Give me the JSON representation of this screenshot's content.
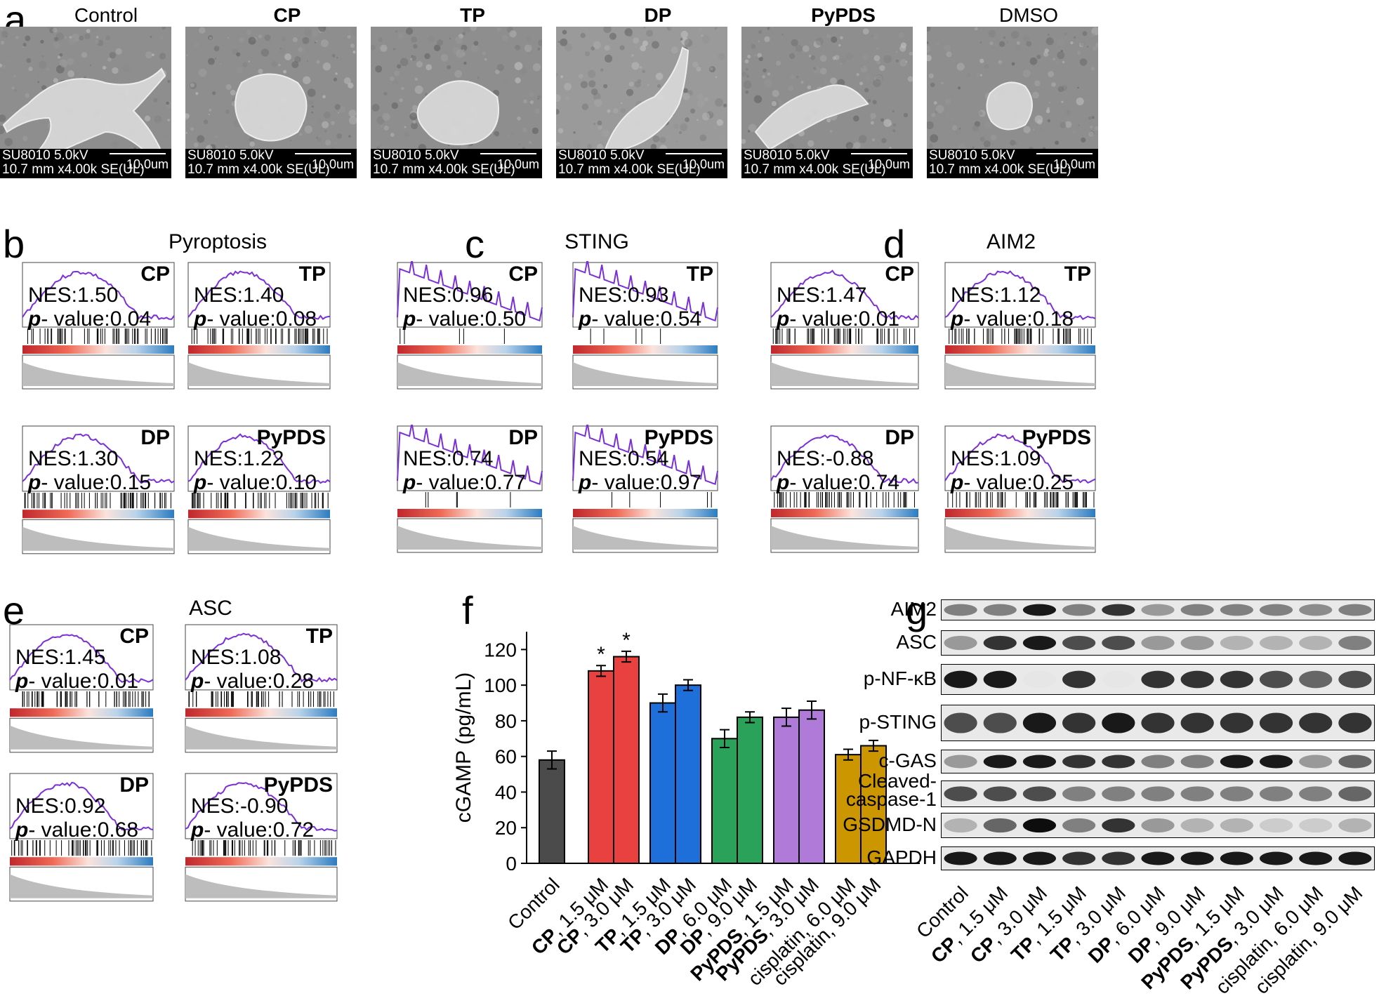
{
  "panel_labels": {
    "a": "a",
    "b": "b",
    "c": "c",
    "d": "d",
    "e": "e",
    "f": "f",
    "g": "g"
  },
  "sem": [
    {
      "title": "Control",
      "bold": false,
      "line1": "SU8010 5.0kV",
      "line2": "10.7 mm x4.00k SE(UL)",
      "scale": "10.0um"
    },
    {
      "title": "CP",
      "bold": true,
      "line1": "SU8010 5.0kV",
      "line2": "10.7 mm x4.00k SE(UL)",
      "scale": "10.0um"
    },
    {
      "title": "TP",
      "bold": true,
      "line1": "SU8010 5.0kV",
      "line2": "10.7 mm x4.00k SE(UL)",
      "scale": "10.0um"
    },
    {
      "title": "DP",
      "bold": true,
      "line1": "SU8010 5.0kV",
      "line2": "10.7 mm x4.00k SE(UL)",
      "scale": "10.0um"
    },
    {
      "title": "PyPDS",
      "bold": true,
      "line1": "SU8010 5.0kV",
      "line2": "10.7 mm x4.00k SE(UL)",
      "scale": "10.0um"
    },
    {
      "title": "DMSO",
      "bold": false,
      "line1": "SU8010 5.0kV",
      "line2": "10.7 mm x4.00k SE(UL)",
      "scale": "10.0um"
    }
  ],
  "gsea_groups": [
    {
      "title": "Pyroptosis",
      "panels": [
        {
          "tag": "CP",
          "nes": "NES:1.50",
          "p": "value:0.04"
        },
        {
          "tag": "TP",
          "nes": "NES:1.40",
          "p": "value:0.08"
        },
        {
          "tag": "DP",
          "nes": "NES:1.30",
          "p": "value:0.15"
        },
        {
          "tag": "PyPDS",
          "nes": "NES:1.22",
          "p": "value:0.10"
        }
      ]
    },
    {
      "title": "STING",
      "panels": [
        {
          "tag": "CP",
          "nes": "NES:0.96",
          "p": "value:0.50"
        },
        {
          "tag": "TP",
          "nes": "NES:0.93",
          "p": "value:0.54"
        },
        {
          "tag": "DP",
          "nes": "NES:0.74",
          "p": "value:0.77"
        },
        {
          "tag": "PyPDS",
          "nes": "NES:0.54",
          "p": "value:0.97"
        }
      ]
    },
    {
      "title": "AIM2",
      "panels": [
        {
          "tag": "CP",
          "nes": "NES:1.47",
          "p": "value:0.01"
        },
        {
          "tag": "TP",
          "nes": "NES:1.12",
          "p": "value:0.18"
        },
        {
          "tag": "DP",
          "nes": "NES:-0.88",
          "p": "value:0.74"
        },
        {
          "tag": "PyPDS",
          "nes": "NES:1.09",
          "p": "value:0.25"
        }
      ]
    },
    {
      "title": "ASC",
      "panels": [
        {
          "tag": "CP",
          "nes": "NES:1.45",
          "p": "value:0.01"
        },
        {
          "tag": "TP",
          "nes": "NES:1.08",
          "p": "value:0.28"
        },
        {
          "tag": "DP",
          "nes": "NES:0.92",
          "p": "value:0.68"
        },
        {
          "tag": "PyPDS",
          "nes": "NES:-0.90",
          "p": "value:0.72"
        }
      ]
    }
  ],
  "p_prefix": "p",
  "p_dash": "- ",
  "chart_data": {
    "type": "bar",
    "ylabel": "cGAMP (pg/mL)",
    "ylim": [
      0,
      130
    ],
    "yticks": [
      0,
      20,
      40,
      60,
      80,
      100,
      120
    ],
    "categories": [
      {
        "bold": "",
        "rest": "Control"
      },
      {
        "bold": "CP",
        "rest": ", 1.5 μM"
      },
      {
        "bold": "CP",
        "rest": ", 3.0 μM"
      },
      {
        "bold": "TP",
        "rest": ", 1.5 μM"
      },
      {
        "bold": "TP",
        "rest": ", 3.0 μM"
      },
      {
        "bold": "DP",
        "rest": ", 6.0 μM"
      },
      {
        "bold": "DP",
        "rest": ", 9.0 μM"
      },
      {
        "bold": "PyPDS",
        "rest": ", 1.5 μM"
      },
      {
        "bold": "PyPDS",
        "rest": ", 3.0 μM"
      },
      {
        "bold": "",
        "rest": "cisplatin, 6.0 μM"
      },
      {
        "bold": "",
        "rest": "cisplatin, 9.0 μM"
      }
    ],
    "values": [
      58,
      108,
      116,
      90,
      100,
      70,
      82,
      82,
      86,
      61,
      66
    ],
    "errors": [
      5,
      3,
      3,
      5,
      3,
      5,
      3,
      5,
      5,
      3,
      3
    ],
    "colors": [
      "#4b4b4b",
      "#e8413f",
      "#e8413f",
      "#1e6fd9",
      "#1e6fd9",
      "#2aa25a",
      "#2aa25a",
      "#b07ad8",
      "#b07ad8",
      "#cc9600",
      "#cc9600"
    ],
    "significance": [
      "",
      "*",
      "*",
      "",
      "",
      "",
      "",
      "",
      "",
      "",
      ""
    ]
  },
  "western_blot": {
    "rows": [
      "AIM2",
      "ASC",
      "p-NF-κB",
      "p-STING",
      "c-GAS",
      "Cleaved-caspase-1",
      "GSDMD-N",
      "GAPDH"
    ],
    "lanes": [
      {
        "bold": "",
        "rest": "Control"
      },
      {
        "bold": "CP",
        "rest": ", 1.5 μM"
      },
      {
        "bold": "CP",
        "rest": ", 3.0 μM"
      },
      {
        "bold": "TP",
        "rest": ", 1.5 μM"
      },
      {
        "bold": "TP",
        "rest": ", 3.0 μM"
      },
      {
        "bold": "DP",
        "rest": ", 6.0 μM"
      },
      {
        "bold": "DP",
        "rest": ", 9.0 μM"
      },
      {
        "bold": "PyPDS",
        "rest": ", 1.5 μM"
      },
      {
        "bold": "PyPDS",
        "rest": ", 3.0 μM"
      },
      {
        "bold": "",
        "rest": "cisplatin, 6.0 μM"
      },
      {
        "bold": "",
        "rest": "cisplatin, 9.0 μM"
      }
    ]
  }
}
